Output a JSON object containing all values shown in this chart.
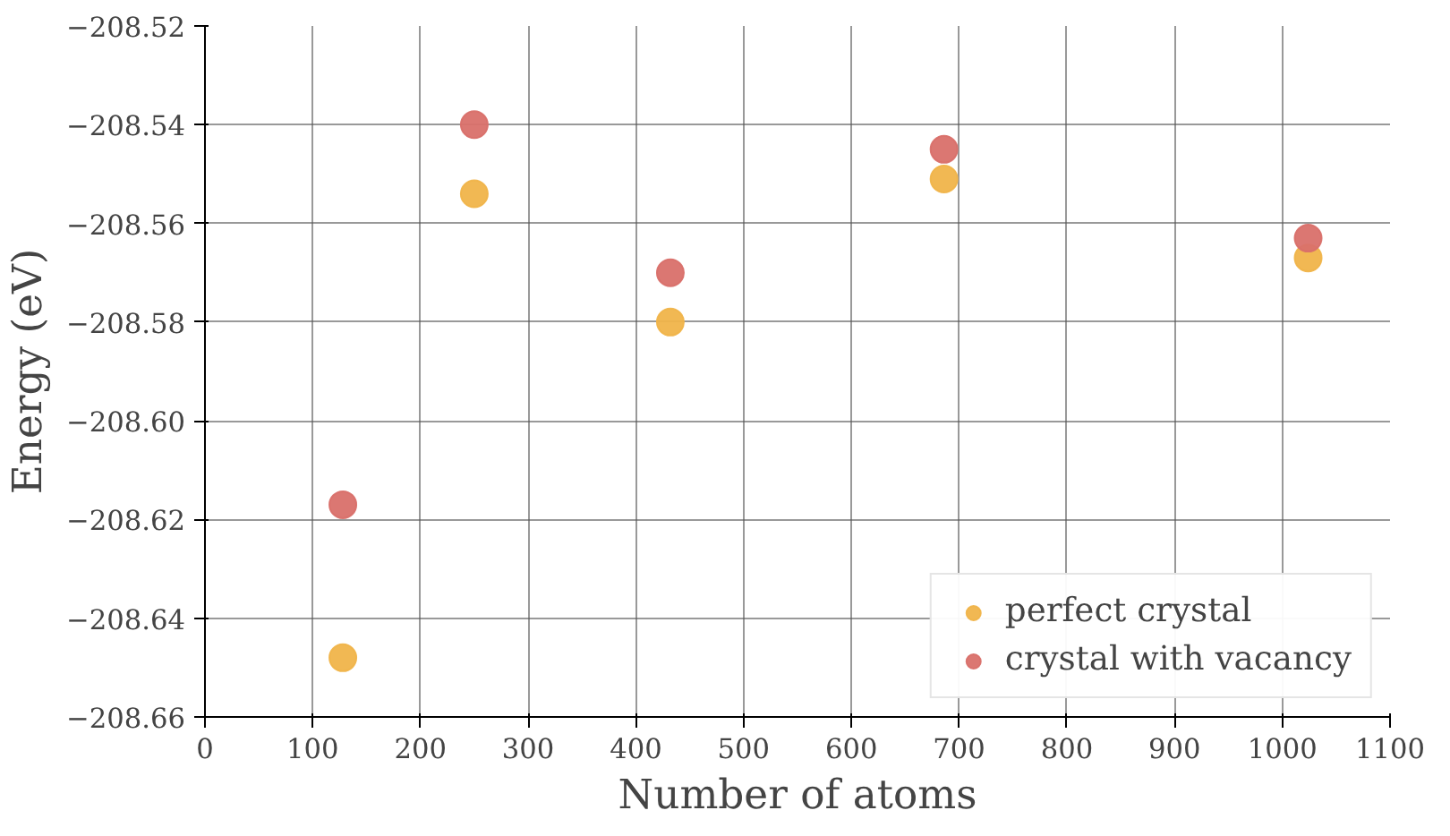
{
  "chart_data": {
    "type": "scatter",
    "xlabel": "Number of atoms",
    "ylabel": "Energy (eV)",
    "xlim": [
      0,
      1100
    ],
    "xticks": [
      0,
      100,
      200,
      300,
      400,
      500,
      600,
      700,
      800,
      900,
      1000,
      1100
    ],
    "ylim": [
      -208.66,
      -208.52
    ],
    "yticks": [
      {
        "value": -208.66,
        "label": "−208.66"
      },
      {
        "value": -208.64,
        "label": "−208.64"
      },
      {
        "value": -208.62,
        "label": "−208.62"
      },
      {
        "value": -208.6,
        "label": "−208.60"
      },
      {
        "value": -208.58,
        "label": "−208.58"
      },
      {
        "value": -208.56,
        "label": "−208.56"
      },
      {
        "value": -208.54,
        "label": "−208.54"
      },
      {
        "value": -208.52,
        "label": "−208.52"
      }
    ],
    "x": [
      128,
      250,
      432,
      686,
      1024
    ],
    "series": [
      {
        "name": "perfect crystal",
        "color": "#f0b44a",
        "values": [
          -208.648,
          -208.554,
          -208.58,
          -208.551,
          -208.567
        ]
      },
      {
        "name": "crystal with vacancy",
        "color": "#d9706a",
        "values": [
          -208.617,
          -208.54,
          -208.57,
          -208.545,
          -208.563
        ]
      }
    ],
    "grid": true,
    "legend": "bottom right",
    "marker": "circle"
  }
}
